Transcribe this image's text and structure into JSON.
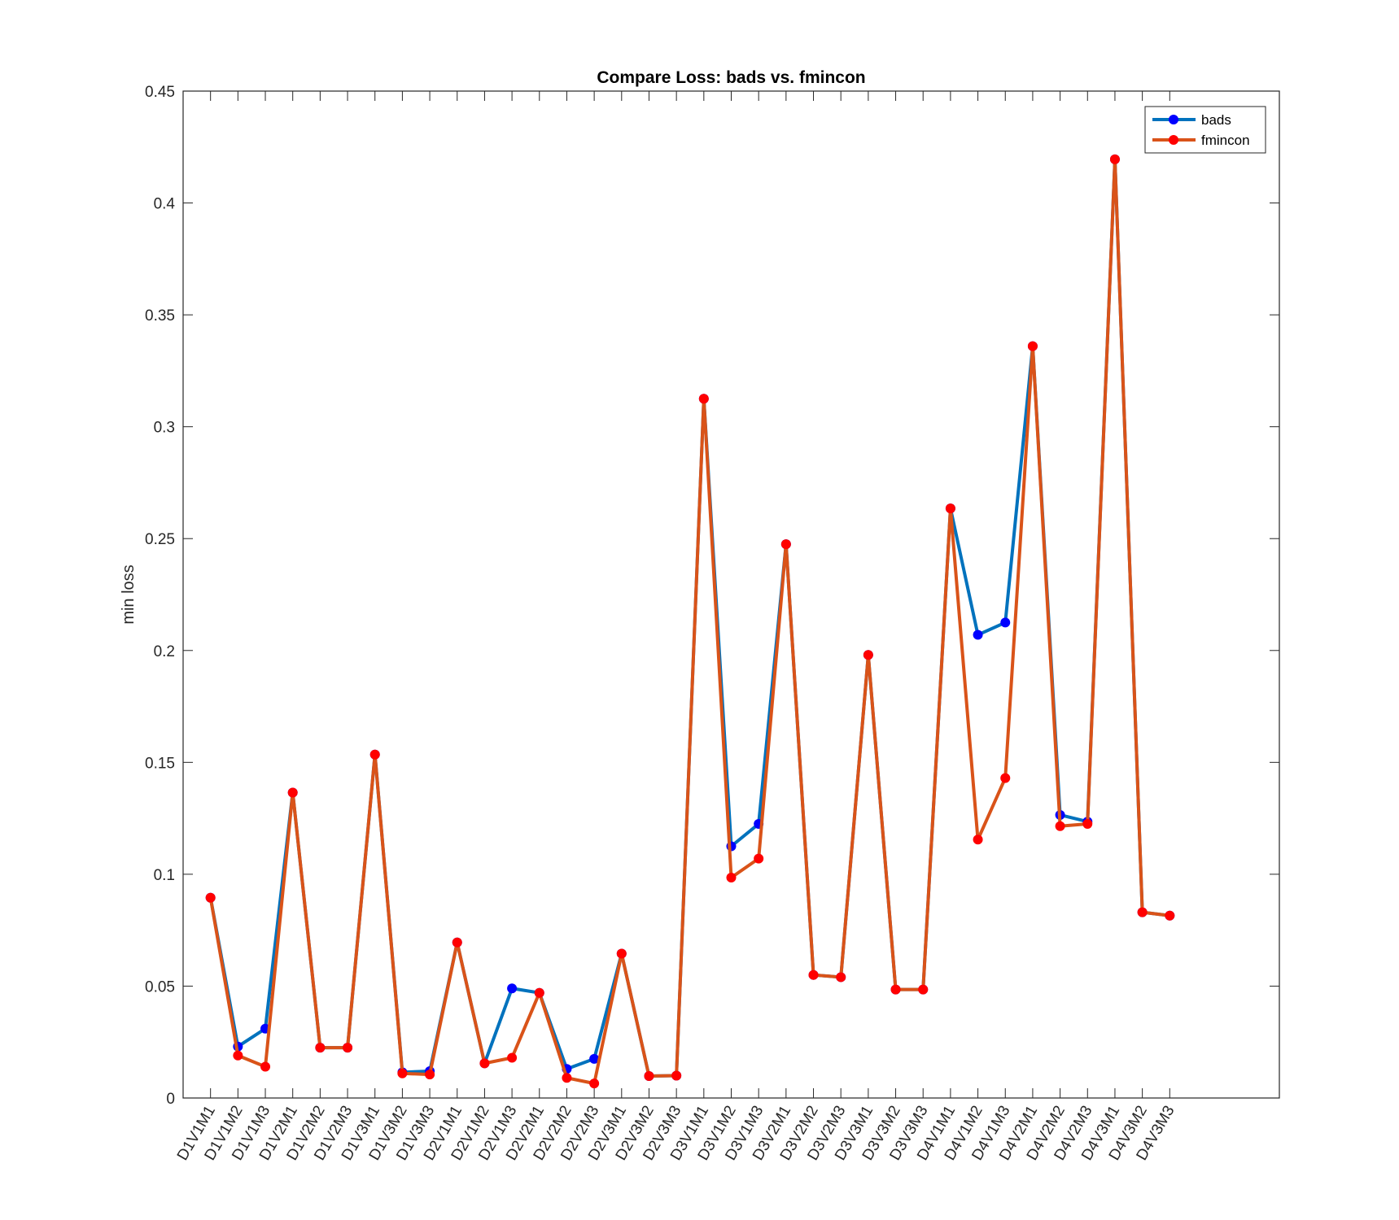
{
  "chart_data": {
    "type": "line",
    "title": "Compare Loss: bads vs. fmincon",
    "xlabel": "",
    "ylabel": "min loss",
    "ylim": [
      0,
      0.45
    ],
    "yticks": [
      "0",
      "0.05",
      "0.1",
      "0.15",
      "0.2",
      "0.25",
      "0.3",
      "0.35",
      "0.4",
      "0.45"
    ],
    "ytick_values": [
      0,
      0.05,
      0.1,
      0.15,
      0.2,
      0.25,
      0.3,
      0.35,
      0.4,
      0.45
    ],
    "xlim": [
      0,
      40
    ],
    "categories": [
      "D1V1M1",
      "D1V1M2",
      "D1V1M3",
      "D1V2M1",
      "D1V2M2",
      "D1V2M3",
      "D1V3M1",
      "D1V3M2",
      "D1V3M3",
      "D2V1M1",
      "D2V1M2",
      "D2V1M3",
      "D2V2M1",
      "D2V2M2",
      "D2V2M3",
      "D2V3M1",
      "D2V3M2",
      "D2V3M3",
      "D3V1M1",
      "D3V1M2",
      "D3V1M3",
      "D3V2M1",
      "D3V2M2",
      "D3V2M3",
      "D3V3M1",
      "D3V3M2",
      "D3V3M3",
      "D4V1M1",
      "D4V1M2",
      "D4V1M3",
      "D4V2M1",
      "D4V2M2",
      "D4V2M3",
      "D4V3M1",
      "D4V3M2",
      "D4V3M3"
    ],
    "series": [
      {
        "name": "bads",
        "line_color": "#0072BD",
        "marker_color": "#0000FF",
        "values": [
          0.0895,
          0.023,
          0.031,
          0.1365,
          0.0225,
          0.0225,
          0.1535,
          0.0115,
          0.012,
          0.0695,
          0.0155,
          0.049,
          0.047,
          0.013,
          0.0175,
          0.0645,
          0.0098,
          0.01,
          0.3125,
          0.1125,
          0.1225,
          0.2475,
          0.055,
          0.054,
          0.198,
          0.0485,
          0.0485,
          0.2635,
          0.207,
          0.2125,
          0.336,
          0.1265,
          0.1235,
          0.4195,
          0.083,
          0.0815
        ]
      },
      {
        "name": "fmincon",
        "line_color": "#D95319",
        "marker_color": "#FF0000",
        "values": [
          0.0895,
          0.019,
          0.014,
          0.1365,
          0.0225,
          0.0225,
          0.1535,
          0.011,
          0.0105,
          0.0695,
          0.0155,
          0.018,
          0.047,
          0.009,
          0.0065,
          0.0645,
          0.0098,
          0.01,
          0.3125,
          0.0985,
          0.107,
          0.2475,
          0.055,
          0.054,
          0.198,
          0.0485,
          0.0485,
          0.2635,
          0.1155,
          0.143,
          0.336,
          0.1215,
          0.1225,
          0.4195,
          0.083,
          0.0815
        ]
      }
    ],
    "legend_position": "top-right",
    "grid": false
  }
}
